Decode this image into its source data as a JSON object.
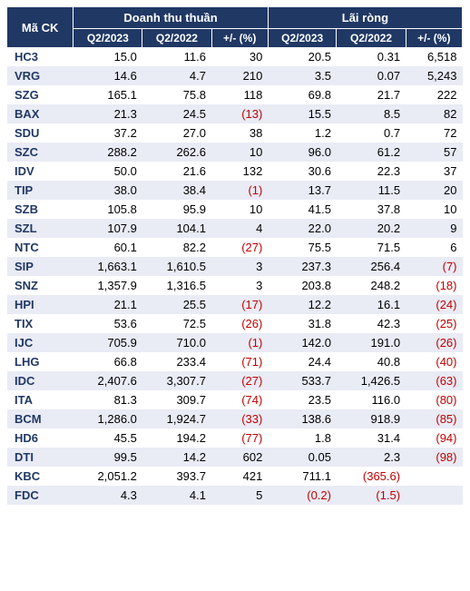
{
  "header": {
    "ticker": "Mã CK",
    "revenue_group": "Doanh thu thuần",
    "profit_group": "Lãi ròng",
    "q2_2023": "Q2/2023",
    "q2_2022": "Q2/2022",
    "change": "+/- (%)"
  },
  "colors": {
    "header_bg": "#203864",
    "header_fg": "#ffffff",
    "stripe": "#e9ebf5",
    "ticker_color": "#203864",
    "negative_color": "#c00000"
  },
  "rows": [
    {
      "t": "HC3",
      "r23": "15.0",
      "r22": "11.6",
      "rc": "30",
      "p23": "20.5",
      "p22": "0.31",
      "pc": "6,518"
    },
    {
      "t": "VRG",
      "r23": "14.6",
      "r22": "4.7",
      "rc": "210",
      "p23": "3.5",
      "p22": "0.07",
      "pc": "5,243"
    },
    {
      "t": "SZG",
      "r23": "165.1",
      "r22": "75.8",
      "rc": "118",
      "p23": "69.8",
      "p22": "21.7",
      "pc": "222"
    },
    {
      "t": "BAX",
      "r23": "21.3",
      "r22": "24.5",
      "rc": "(13)",
      "rc_neg": true,
      "p23": "15.5",
      "p22": "8.5",
      "pc": "82"
    },
    {
      "t": "SDU",
      "r23": "37.2",
      "r22": "27.0",
      "rc": "38",
      "p23": "1.2",
      "p22": "0.7",
      "pc": "72"
    },
    {
      "t": "SZC",
      "r23": "288.2",
      "r22": "262.6",
      "rc": "10",
      "p23": "96.0",
      "p22": "61.2",
      "pc": "57"
    },
    {
      "t": "IDV",
      "r23": "50.0",
      "r22": "21.6",
      "rc": "132",
      "p23": "30.6",
      "p22": "22.3",
      "pc": "37"
    },
    {
      "t": "TIP",
      "r23": "38.0",
      "r22": "38.4",
      "rc": "(1)",
      "rc_neg": true,
      "p23": "13.7",
      "p22": "11.5",
      "pc": "20"
    },
    {
      "t": "SZB",
      "r23": "105.8",
      "r22": "95.9",
      "rc": "10",
      "p23": "41.5",
      "p22": "37.8",
      "pc": "10"
    },
    {
      "t": "SZL",
      "r23": "107.9",
      "r22": "104.1",
      "rc": "4",
      "p23": "22.0",
      "p22": "20.2",
      "pc": "9"
    },
    {
      "t": "NTC",
      "r23": "60.1",
      "r22": "82.2",
      "rc": "(27)",
      "rc_neg": true,
      "p23": "75.5",
      "p22": "71.5",
      "pc": "6"
    },
    {
      "t": "SIP",
      "r23": "1,663.1",
      "r22": "1,610.5",
      "rc": "3",
      "p23": "237.3",
      "p22": "256.4",
      "pc": "(7)",
      "pc_neg": true
    },
    {
      "t": "SNZ",
      "r23": "1,357.9",
      "r22": "1,316.5",
      "rc": "3",
      "p23": "203.8",
      "p22": "248.2",
      "pc": "(18)",
      "pc_neg": true
    },
    {
      "t": "HPI",
      "r23": "21.1",
      "r22": "25.5",
      "rc": "(17)",
      "rc_neg": true,
      "p23": "12.2",
      "p22": "16.1",
      "pc": "(24)",
      "pc_neg": true
    },
    {
      "t": "TIX",
      "r23": "53.6",
      "r22": "72.5",
      "rc": "(26)",
      "rc_neg": true,
      "p23": "31.8",
      "p22": "42.3",
      "pc": "(25)",
      "pc_neg": true
    },
    {
      "t": "IJC",
      "r23": "705.9",
      "r22": "710.0",
      "rc": "(1)",
      "rc_neg": true,
      "p23": "142.0",
      "p22": "191.0",
      "pc": "(26)",
      "pc_neg": true
    },
    {
      "t": "LHG",
      "r23": "66.8",
      "r22": "233.4",
      "rc": "(71)",
      "rc_neg": true,
      "p23": "24.4",
      "p22": "40.8",
      "pc": "(40)",
      "pc_neg": true
    },
    {
      "t": "IDC",
      "r23": "2,407.6",
      "r22": "3,307.7",
      "rc": "(27)",
      "rc_neg": true,
      "p23": "533.7",
      "p22": "1,426.5",
      "pc": "(63)",
      "pc_neg": true
    },
    {
      "t": "ITA",
      "r23": "81.3",
      "r22": "309.7",
      "rc": "(74)",
      "rc_neg": true,
      "p23": "23.5",
      "p22": "116.0",
      "pc": "(80)",
      "pc_neg": true
    },
    {
      "t": "BCM",
      "r23": "1,286.0",
      "r22": "1,924.7",
      "rc": "(33)",
      "rc_neg": true,
      "p23": "138.6",
      "p22": "918.9",
      "pc": "(85)",
      "pc_neg": true
    },
    {
      "t": "HD6",
      "r23": "45.5",
      "r22": "194.2",
      "rc": "(77)",
      "rc_neg": true,
      "p23": "1.8",
      "p22": "31.4",
      "pc": "(94)",
      "pc_neg": true
    },
    {
      "t": "DTI",
      "r23": "99.5",
      "r22": "14.2",
      "rc": "602",
      "p23": "0.05",
      "p22": "2.3",
      "pc": "(98)",
      "pc_neg": true
    },
    {
      "t": "KBC",
      "r23": "2,051.2",
      "r22": "393.7",
      "rc": "421",
      "p23": "711.1",
      "p22": "(365.6)",
      "p22_neg": true,
      "pc": ""
    },
    {
      "t": "FDC",
      "r23": "4.3",
      "r22": "4.1",
      "rc": "5",
      "p23": "(0.2)",
      "p23_neg": true,
      "p22": "(1.5)",
      "p22_neg": true,
      "pc": ""
    }
  ]
}
